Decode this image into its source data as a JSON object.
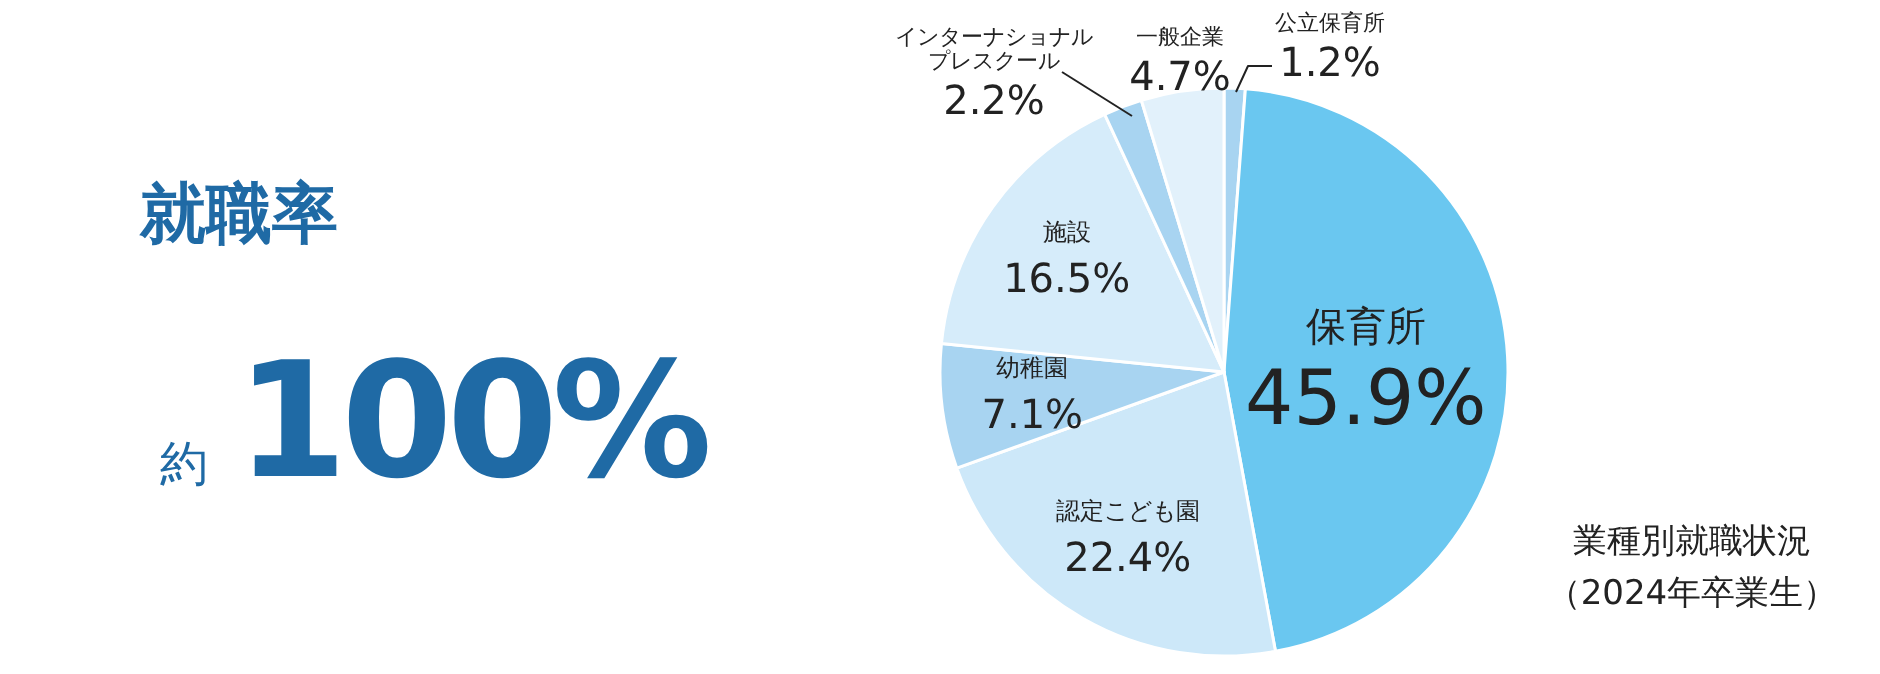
{
  "chart_data": [
    {
      "type": "other",
      "title": "就職率",
      "annotations": [
        "約",
        "100%"
      ]
    },
    {
      "type": "pie",
      "title": "業種別就職状況",
      "subtitle": "（2024年卒業生）",
      "categories": [
        "公立保育所",
        "保育所",
        "認定こども園",
        "幼稚園",
        "施設",
        "インターナショナルプレスクール",
        "一般企業"
      ],
      "values": [
        1.2,
        45.9,
        22.4,
        7.1,
        16.5,
        2.2,
        4.7
      ],
      "value_labels": [
        "1.2%",
        "45.9%",
        "22.4%",
        "7.1%",
        "16.5%",
        "2.2%",
        "4.7%"
      ],
      "colors": [
        "#a8d4f1",
        "#6ac7f0",
        "#cde8f9",
        "#a8d4f1",
        "#d6ecfa",
        "#a8d4f1",
        "#e2f1fb"
      ]
    }
  ]
}
